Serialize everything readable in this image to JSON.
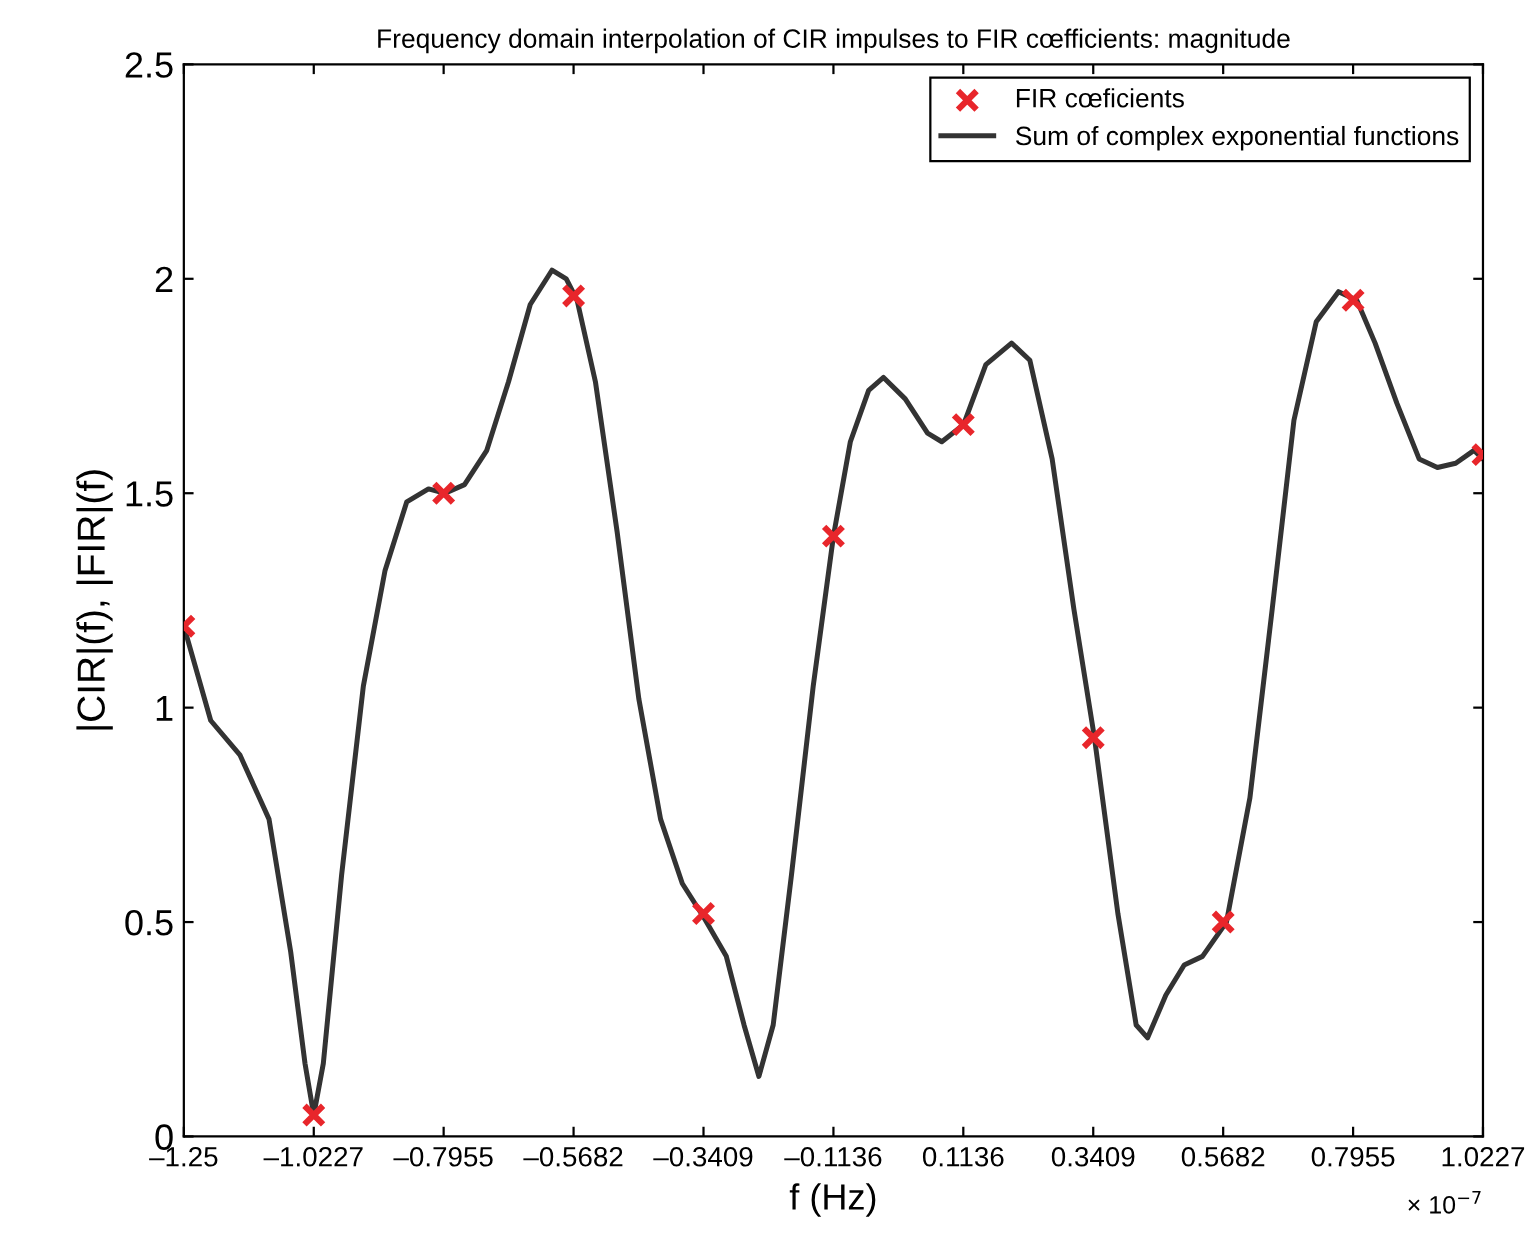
{
  "chart_data": {
    "type": "line",
    "title": "Frequency domain interpolation of CIR impulses to FIR cœfficients: magnitude",
    "xlabel": "f (Hz)",
    "ylabel": "|CIR|(f), |FIR|(f)",
    "annotations": [
      "× 10$^{−7}$"
    ],
    "xlim": [
      -1.25,
      1.0227
    ],
    "xticks": [
      {
        "value": -1.25,
        "label": "–1.25"
      },
      {
        "value": -1.0227,
        "label": "–1.0227"
      },
      {
        "value": -0.7955,
        "label": "–0.7955"
      },
      {
        "value": -0.5682,
        "label": "–0.5682"
      },
      {
        "value": -0.3409,
        "label": "–0.3409"
      },
      {
        "value": -0.1136,
        "label": "–0.1136"
      },
      0.1136,
      0.3409,
      0.5682,
      0.7955,
      1.0227
    ],
    "ylim": [
      0,
      2.5
    ],
    "yticks": [
      0,
      0.5,
      1,
      1.5,
      2,
      2.5
    ],
    "grid": false,
    "legend": "top right",
    "series": [
      {
        "name": "FIR cœficients",
        "type": "scatter",
        "marker": "cross",
        "color": "#e8262b",
        "x": [
          -1.25,
          -1.0227,
          -0.7955,
          -0.5682,
          -0.3409,
          -0.1136,
          0.1136,
          0.3409,
          0.5682,
          0.7955,
          1.0227
        ],
        "values": [
          1.19,
          0.05,
          1.5,
          1.96,
          0.52,
          1.4,
          1.66,
          0.93,
          0.5,
          1.95,
          1.59
        ]
      },
      {
        "name": "Sum of complex exponential functions",
        "line_style": "solid",
        "color": "#333333",
        "x": [
          -1.25,
          -1.203,
          -1.152,
          -1.101,
          -1.063,
          -1.038,
          -1.0227,
          -1.006,
          -0.974,
          -0.936,
          -0.898,
          -0.86,
          -0.822,
          -0.793,
          -0.759,
          -0.72,
          -0.682,
          -0.644,
          -0.606,
          -0.581,
          -0.562,
          -0.53,
          -0.492,
          -0.454,
          -0.416,
          -0.378,
          -0.34,
          -0.301,
          -0.27,
          -0.244,
          -0.219,
          -0.187,
          -0.149,
          -0.1136,
          -0.084,
          -0.052,
          -0.026,
          0.012,
          0.051,
          0.076,
          0.114,
          0.153,
          0.198,
          0.23,
          0.269,
          0.307,
          0.343,
          0.384,
          0.416,
          0.436,
          0.468,
          0.5,
          0.532,
          0.574,
          0.615,
          0.654,
          0.692,
          0.731,
          0.77,
          0.802,
          0.834,
          0.872,
          0.911,
          0.943,
          0.975,
          1.007,
          1.0227
        ],
        "values": [
          1.19,
          0.97,
          0.89,
          0.74,
          0.43,
          0.17,
          0.05,
          0.17,
          0.61,
          1.05,
          1.32,
          1.48,
          1.51,
          1.5,
          1.52,
          1.6,
          1.76,
          1.94,
          2.02,
          2.0,
          1.95,
          1.76,
          1.41,
          1.02,
          0.74,
          0.59,
          0.51,
          0.42,
          0.26,
          0.14,
          0.26,
          0.61,
          1.05,
          1.4,
          1.62,
          1.74,
          1.77,
          1.72,
          1.64,
          1.62,
          1.66,
          1.8,
          1.85,
          1.81,
          1.58,
          1.23,
          0.93,
          0.52,
          0.26,
          0.23,
          0.33,
          0.4,
          0.42,
          0.5,
          0.79,
          1.23,
          1.67,
          1.9,
          1.97,
          1.95,
          1.85,
          1.71,
          1.58,
          1.56,
          1.57,
          1.6,
          1.58
        ]
      }
    ]
  }
}
